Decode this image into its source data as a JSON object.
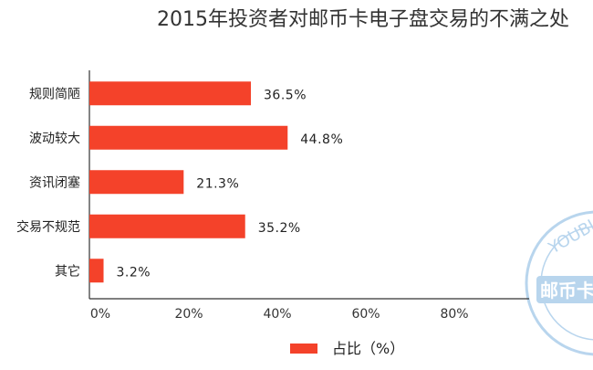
{
  "chart_data": {
    "type": "bar",
    "orientation": "horizontal",
    "title": "2015年投资者对邮币卡电子盘交易的不满之处",
    "categories": [
      "规则简陋",
      "波动较大",
      "资讯闭塞",
      "交易不规范",
      "其它"
    ],
    "series": [
      {
        "name": "占比（%）",
        "values": [
          36.5,
          44.8,
          21.3,
          35.2,
          3.2
        ]
      }
    ],
    "value_labels": [
      "36.5%",
      "44.8%",
      "21.3%",
      "35.2%",
      "3.2%"
    ],
    "xlim": [
      0,
      100
    ],
    "x_ticks": [
      0,
      20,
      40,
      60,
      80
    ],
    "x_tick_labels": [
      "0%",
      "20%",
      "40%",
      "60%",
      "80%"
    ],
    "grid": false,
    "legend_position": "bottom"
  },
  "colors": {
    "bar": "#F4422A",
    "axis": "#333333",
    "stamp": "#7FB3E0"
  },
  "watermark": {
    "text_top": "YOUBI",
    "text_main": "邮币卡"
  }
}
